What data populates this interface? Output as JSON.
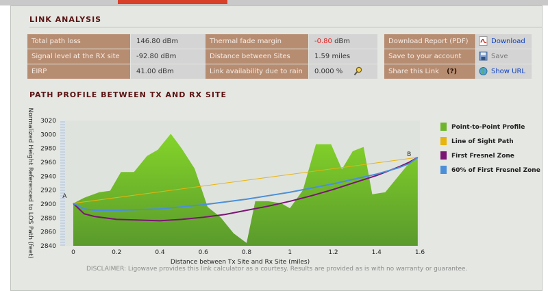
{
  "link_analysis": {
    "title": "LINK ANALYSIS",
    "col1": [
      {
        "label": "Total path loss",
        "value": "146.80 dBm"
      },
      {
        "label": "Signal level at the RX site",
        "value": "-92.80 dBm"
      },
      {
        "label": "EIRP",
        "value": "41.00 dBm"
      }
    ],
    "col2": [
      {
        "label": "Thermal fade margin",
        "value_num": "-0.80",
        "value_unit": "dBm"
      },
      {
        "label": "Distance between Sites",
        "value": "1.59 miles"
      },
      {
        "label": "Link availability due to rain",
        "value": "0.000 %"
      }
    ],
    "col3": [
      {
        "label": "Download Report (PDF)",
        "action": "Download"
      },
      {
        "label": "Save to your account",
        "action": "Save"
      },
      {
        "label": "Share this Link",
        "help": "(?)",
        "action": "Show URL"
      }
    ]
  },
  "path_profile": {
    "title": "PATH PROFILE BETWEEN TX AND RX SITE",
    "disclaimer": "DISCLAIMER: Ligowave provides this link calculator as a courtesy.  Results are provided as is with no warranty or guarantee."
  },
  "colors": {
    "terrain": "#6fb52c",
    "los": "#e8b40e",
    "fresnel": "#7a1574",
    "fresnel60": "#4b8fd9",
    "label_bg": "#b78d72",
    "value_bg": "#d4d4d4",
    "title": "#5a1212"
  },
  "chart_data": {
    "type": "area",
    "xlabel": "Distance between Tx Site and Rx Site (miles)",
    "ylabel": "Normalized Height Referenced to LOS Path (feet)",
    "xlim": [
      -0.06,
      1.6
    ],
    "ylim": [
      2840,
      3020
    ],
    "xticks": [
      "0",
      "0.2",
      "0.4",
      "0.6",
      "0.8",
      "1",
      "1.2",
      "1.4",
      "1.6"
    ],
    "xtick_values": [
      0,
      0.2,
      0.4,
      0.6,
      0.8,
      1,
      1.2,
      1.4,
      1.6
    ],
    "yticks": [
      "2840",
      "2860",
      "2880",
      "2900",
      "2920",
      "2940",
      "2960",
      "2980",
      "3000",
      "3020"
    ],
    "ytick_values": [
      2840,
      2860,
      2880,
      2900,
      2920,
      2940,
      2960,
      2980,
      3000,
      3020
    ],
    "point_labels": [
      {
        "text": "A",
        "x": -0.04,
        "y": 2905
      },
      {
        "text": "B",
        "x": 1.55,
        "y": 2965
      }
    ],
    "series": [
      {
        "name": "Point-to-Point Profile",
        "kind": "area",
        "color": "#6fb52c",
        "x": [
          0,
          0.05,
          0.12,
          0.17,
          0.22,
          0.28,
          0.34,
          0.39,
          0.45,
          0.5,
          0.56,
          0.62,
          0.68,
          0.74,
          0.8,
          0.84,
          0.9,
          0.96,
          1.0,
          1.06,
          1.12,
          1.19,
          1.24,
          1.29,
          1.34,
          1.38,
          1.44,
          1.49,
          1.54,
          1.59
        ],
        "y": [
          2901,
          2909,
          2917,
          2919,
          2946,
          2946,
          2969,
          2978,
          3001,
          2980,
          2951,
          2896,
          2881,
          2858,
          2844,
          2904,
          2904,
          2901,
          2894,
          2920,
          2986,
          2986,
          2950,
          2976,
          2982,
          2914,
          2917,
          2936,
          2955,
          2967
        ]
      },
      {
        "name": "Line of Sight Path",
        "kind": "line",
        "color": "#e8b40e",
        "x": [
          0,
          1.59
        ],
        "y": [
          2901,
          2967
        ]
      },
      {
        "name": "First Fresnel Zone",
        "kind": "line",
        "color": "#7a1574",
        "x": [
          0,
          0.05,
          0.1,
          0.2,
          0.3,
          0.4,
          0.5,
          0.6,
          0.7,
          0.8,
          0.9,
          1.0,
          1.1,
          1.2,
          1.3,
          1.4,
          1.5,
          1.55,
          1.59
        ],
        "y": [
          2901,
          2886,
          2882,
          2878,
          2877,
          2876,
          2878,
          2881,
          2885,
          2891,
          2897,
          2904,
          2912,
          2921,
          2931,
          2941,
          2953,
          2960,
          2967
        ]
      },
      {
        "name": "60% of First Fresnel Zone",
        "kind": "line",
        "color": "#4b8fd9",
        "x": [
          0,
          0.05,
          0.1,
          0.2,
          0.3,
          0.4,
          0.5,
          0.6,
          0.7,
          0.8,
          0.9,
          1.0,
          1.1,
          1.2,
          1.3,
          1.4,
          1.5,
          1.55,
          1.59
        ],
        "y": [
          2901,
          2893,
          2891,
          2891,
          2892,
          2893,
          2896,
          2899,
          2903,
          2907,
          2912,
          2917,
          2923,
          2929,
          2936,
          2943,
          2952,
          2958,
          2967
        ]
      }
    ]
  }
}
